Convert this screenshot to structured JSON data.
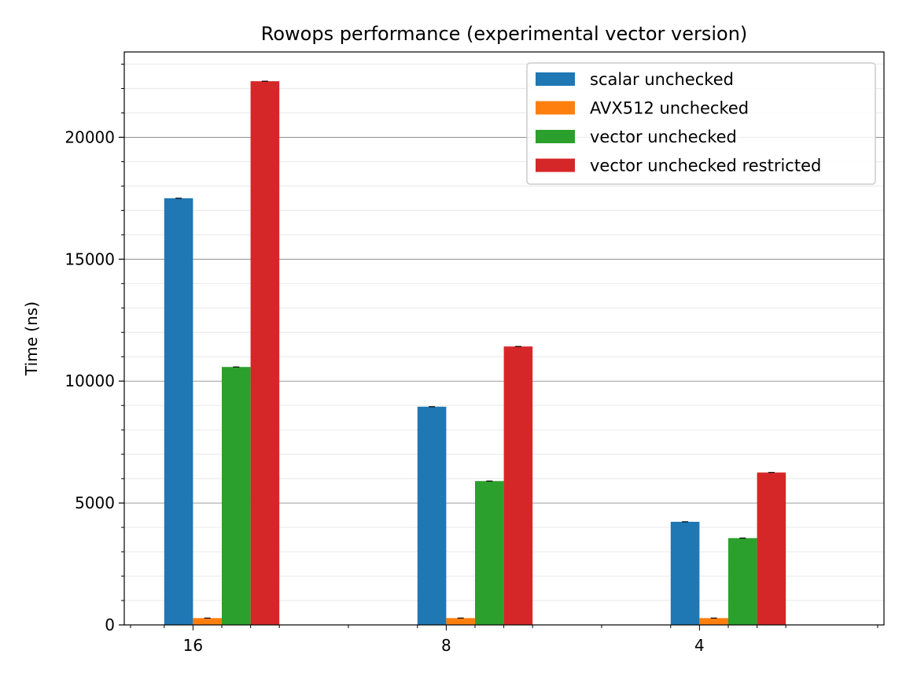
{
  "chart_data": {
    "type": "bar",
    "title": "Rowops performance (experimental vector version)",
    "xlabel": "",
    "ylabel": "Time (ns)",
    "categories": [
      "16",
      "8",
      "4"
    ],
    "ylim": [
      0,
      23500
    ],
    "yticks": [
      0,
      5000,
      10000,
      15000,
      20000
    ],
    "yticks_labels": [
      "0",
      "5000",
      "10000",
      "15000",
      "20000"
    ],
    "y_minor_step": 1000,
    "grid": {
      "major": true,
      "minor": true
    },
    "legend_position": "top-right",
    "series": [
      {
        "name": "scalar unchecked",
        "color": "#1f77b4",
        "values": [
          17500,
          8950,
          4230
        ]
      },
      {
        "name": "AVX512 unchecked",
        "color": "#ff7f0e",
        "values": [
          280,
          280,
          280
        ]
      },
      {
        "name": "vector unchecked",
        "color": "#2ca02c",
        "values": [
          10580,
          5900,
          3560
        ]
      },
      {
        "name": "vector unchecked restricted",
        "color": "#d62728",
        "values": [
          22300,
          11420,
          6250
        ]
      }
    ]
  }
}
